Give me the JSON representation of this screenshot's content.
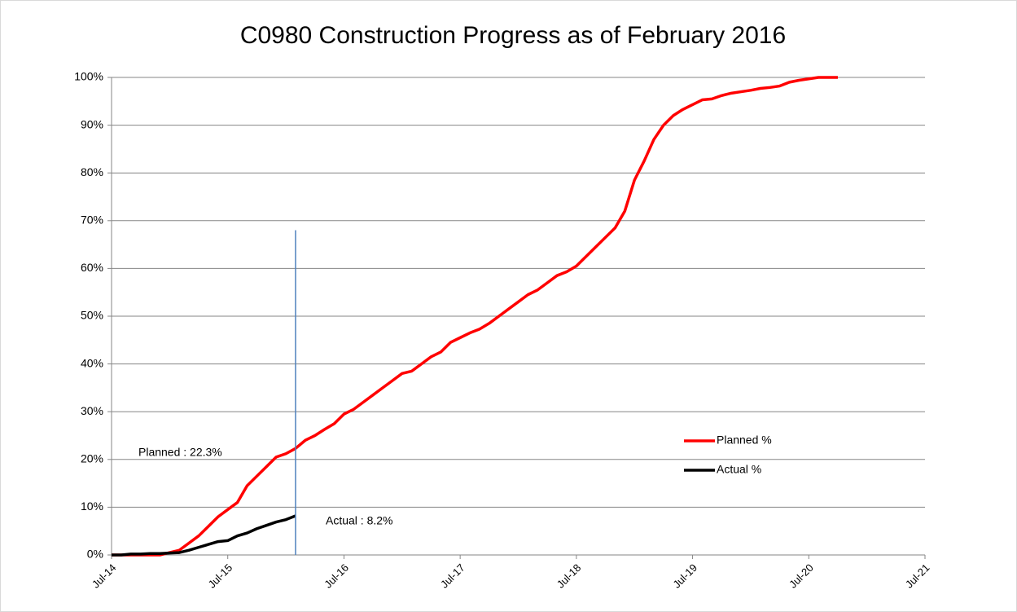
{
  "chart_data": {
    "type": "line",
    "title": "C0980 Construction Progress as of February 2016",
    "x": [
      "2014-07",
      "2014-08",
      "2014-09",
      "2014-10",
      "2014-11",
      "2014-12",
      "2015-01",
      "2015-02",
      "2015-03",
      "2015-04",
      "2015-05",
      "2015-06",
      "2015-07",
      "2015-08",
      "2015-09",
      "2015-10",
      "2015-11",
      "2015-12",
      "2016-01",
      "2016-02",
      "2016-03",
      "2016-04",
      "2016-05",
      "2016-06",
      "2016-07",
      "2016-08",
      "2016-09",
      "2016-10",
      "2016-11",
      "2016-12",
      "2017-01",
      "2017-02",
      "2017-03",
      "2017-04",
      "2017-05",
      "2017-06",
      "2017-07",
      "2017-08",
      "2017-09",
      "2017-10",
      "2017-11",
      "2017-12",
      "2018-01",
      "2018-02",
      "2018-03",
      "2018-04",
      "2018-05",
      "2018-06",
      "2018-07",
      "2018-08",
      "2018-09",
      "2018-10",
      "2018-11",
      "2018-12",
      "2019-01",
      "2019-02",
      "2019-03",
      "2019-04",
      "2019-05",
      "2019-06",
      "2019-07",
      "2019-08",
      "2019-09",
      "2019-10",
      "2019-11",
      "2019-12",
      "2020-01",
      "2020-02",
      "2020-03",
      "2020-04",
      "2020-05",
      "2020-06",
      "2020-07",
      "2020-08",
      "2020-09",
      "2020-10"
    ],
    "series": [
      {
        "name": "Planned %",
        "color": "#ff0000",
        "values": [
          0,
          0,
          0,
          0,
          0,
          0,
          0.5,
          1,
          2.5,
          4,
          6,
          8,
          9.5,
          11,
          14.5,
          16.5,
          18.5,
          20.5,
          21.2,
          22.3,
          24,
          25,
          26.3,
          27.5,
          29.5,
          30.5,
          32,
          33.5,
          35,
          36.5,
          38,
          38.5,
          40,
          41.5,
          42.5,
          44.5,
          45.5,
          46.5,
          47.3,
          48.5,
          50,
          51.5,
          53,
          54.5,
          55.5,
          57,
          58.5,
          59.3,
          60.5,
          62.5,
          64.5,
          66.5,
          68.5,
          72,
          78.5,
          82.5,
          87,
          90,
          92,
          93.3,
          94.3,
          95.3,
          95.5,
          96.2,
          96.7,
          97,
          97.3,
          97.7,
          97.9,
          98.2,
          99,
          99.4,
          99.7,
          100,
          100,
          100
        ]
      },
      {
        "name": "Actual %",
        "color": "#000000",
        "values": [
          0,
          0,
          0.2,
          0.2,
          0.3,
          0.3,
          0.4,
          0.5,
          1,
          1.6,
          2.2,
          2.8,
          3,
          4,
          4.6,
          5.5,
          6.2,
          6.9,
          7.4,
          8.2,
          null,
          null,
          null,
          null,
          null,
          null,
          null,
          null,
          null,
          null,
          null,
          null,
          null,
          null,
          null,
          null,
          null,
          null,
          null,
          null,
          null,
          null,
          null,
          null,
          null,
          null,
          null,
          null,
          null,
          null,
          null,
          null,
          null,
          null,
          null,
          null,
          null,
          null,
          null,
          null,
          null,
          null,
          null,
          null,
          null,
          null,
          null,
          null,
          null,
          null,
          null,
          null,
          null,
          null,
          null,
          null
        ]
      }
    ],
    "xlim": [
      "2014-07",
      "2021-07"
    ],
    "xticks": [
      {
        "value": "2014-07",
        "label": "Jul-14"
      },
      {
        "value": "2015-07",
        "label": "Jul-15"
      },
      {
        "value": "2016-07",
        "label": "Jul-16"
      },
      {
        "value": "2017-07",
        "label": "Jul-17"
      },
      {
        "value": "2018-07",
        "label": "Jul-18"
      },
      {
        "value": "2019-07",
        "label": "Jul-19"
      },
      {
        "value": "2020-07",
        "label": "Jul-20"
      },
      {
        "value": "2021-07",
        "label": "Jul-21"
      }
    ],
    "ylim": [
      0,
      100
    ],
    "yticks": [
      {
        "value": 0,
        "label": "0%"
      },
      {
        "value": 10,
        "label": "10%"
      },
      {
        "value": 20,
        "label": "20%"
      },
      {
        "value": 30,
        "label": "30%"
      },
      {
        "value": 40,
        "label": "40%"
      },
      {
        "value": 50,
        "label": "50%"
      },
      {
        "value": 60,
        "label": "60%"
      },
      {
        "value": 70,
        "label": "70%"
      },
      {
        "value": 80,
        "label": "80%"
      },
      {
        "value": 90,
        "label": "90%"
      },
      {
        "value": 100,
        "label": "100%"
      }
    ],
    "grid": true,
    "legend": "right",
    "vline": {
      "x": "2016-02",
      "y": [
        0,
        68
      ],
      "color": "#4f81bd"
    },
    "annotations": [
      "Planned : 22.3%",
      "Actual : 8.2%"
    ]
  }
}
